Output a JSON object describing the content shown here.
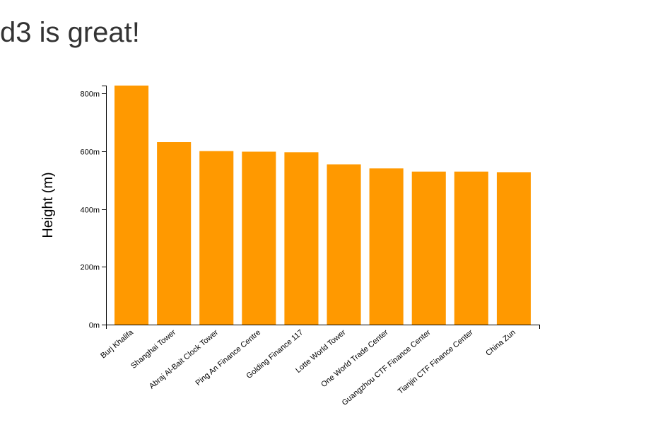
{
  "page": {
    "title": "d3 is great!"
  },
  "chart_data": {
    "type": "bar",
    "title": "",
    "xlabel": "",
    "ylabel": "Height (m)",
    "y_tick_suffix": "m",
    "y_ticks": [
      0,
      200,
      400,
      600,
      800
    ],
    "ylim": [
      0,
      828
    ],
    "grid": false,
    "bar_color": "#ff9900",
    "categories": [
      "Burj Khalifa",
      "Shanghai Tower",
      "Abraj Al-Bait Clock Tower",
      "Ping An Finance Centre",
      "Golding Finance 117",
      "Lotte World Tower",
      "One World Trade Center",
      "Guangzhou CTF Finance Center",
      "Tianjin CTF Finance Center",
      "China Zun"
    ],
    "values": [
      828,
      632,
      601,
      599,
      597,
      555,
      541,
      530,
      530,
      528
    ]
  }
}
